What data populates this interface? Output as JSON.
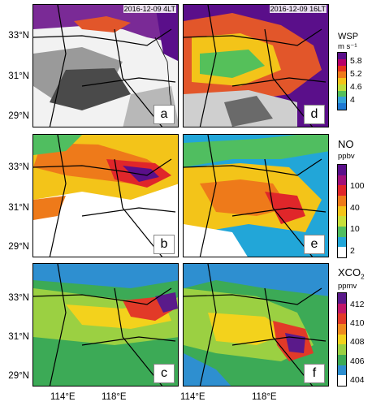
{
  "timestamps": {
    "left": "2016-12-09 4LT",
    "right": "2016-12-09 16LT"
  },
  "panels": [
    {
      "id": "a",
      "field": "WSP",
      "time": "4LT"
    },
    {
      "id": "d",
      "field": "WSP",
      "time": "16LT"
    },
    {
      "id": "b",
      "field": "NO",
      "time": "4LT"
    },
    {
      "id": "e",
      "field": "NO",
      "time": "16LT"
    },
    {
      "id": "c",
      "field": "XCO2",
      "time": "4LT"
    },
    {
      "id": "f",
      "field": "XCO2",
      "time": "16LT"
    }
  ],
  "lat_labels": [
    "33°N",
    "31°N",
    "29°N"
  ],
  "lon_labels": [
    "114°E",
    "118°E",
    "114°E",
    "118°E"
  ],
  "legends": {
    "wsp": {
      "title": "WSP",
      "unit": "m s⁻¹",
      "ticks": [
        "5.8",
        "5.2",
        "4.6",
        "4"
      ],
      "colors": [
        "#5a0f8a",
        "#b8006a",
        "#e6321e",
        "#ee7a1a",
        "#f3c419",
        "#bede3c",
        "#55c05a",
        "#35a3d8",
        "#1e78d2"
      ]
    },
    "no": {
      "title": "NO",
      "unit": "ppbv",
      "ticks": [
        "100",
        "40",
        "10",
        "2"
      ],
      "colors": [
        "#5a0f8a",
        "#a0107a",
        "#e0262a",
        "#ee7a1a",
        "#f3c419",
        "#c8e03a",
        "#50be60",
        "#22a6d8",
        "#ffffff"
      ]
    },
    "xco2": {
      "title": "XCO",
      "title_sub": "2",
      "unit": "ppmv",
      "ticks": [
        "412",
        "410",
        "408",
        "406",
        "404"
      ],
      "colors": [
        "#5a1a8a",
        "#c0186a",
        "#e23a28",
        "#ef8a1e",
        "#f3d21c",
        "#9bd042",
        "#3caa56",
        "#2e8fd0",
        "#ffffff"
      ]
    }
  }
}
